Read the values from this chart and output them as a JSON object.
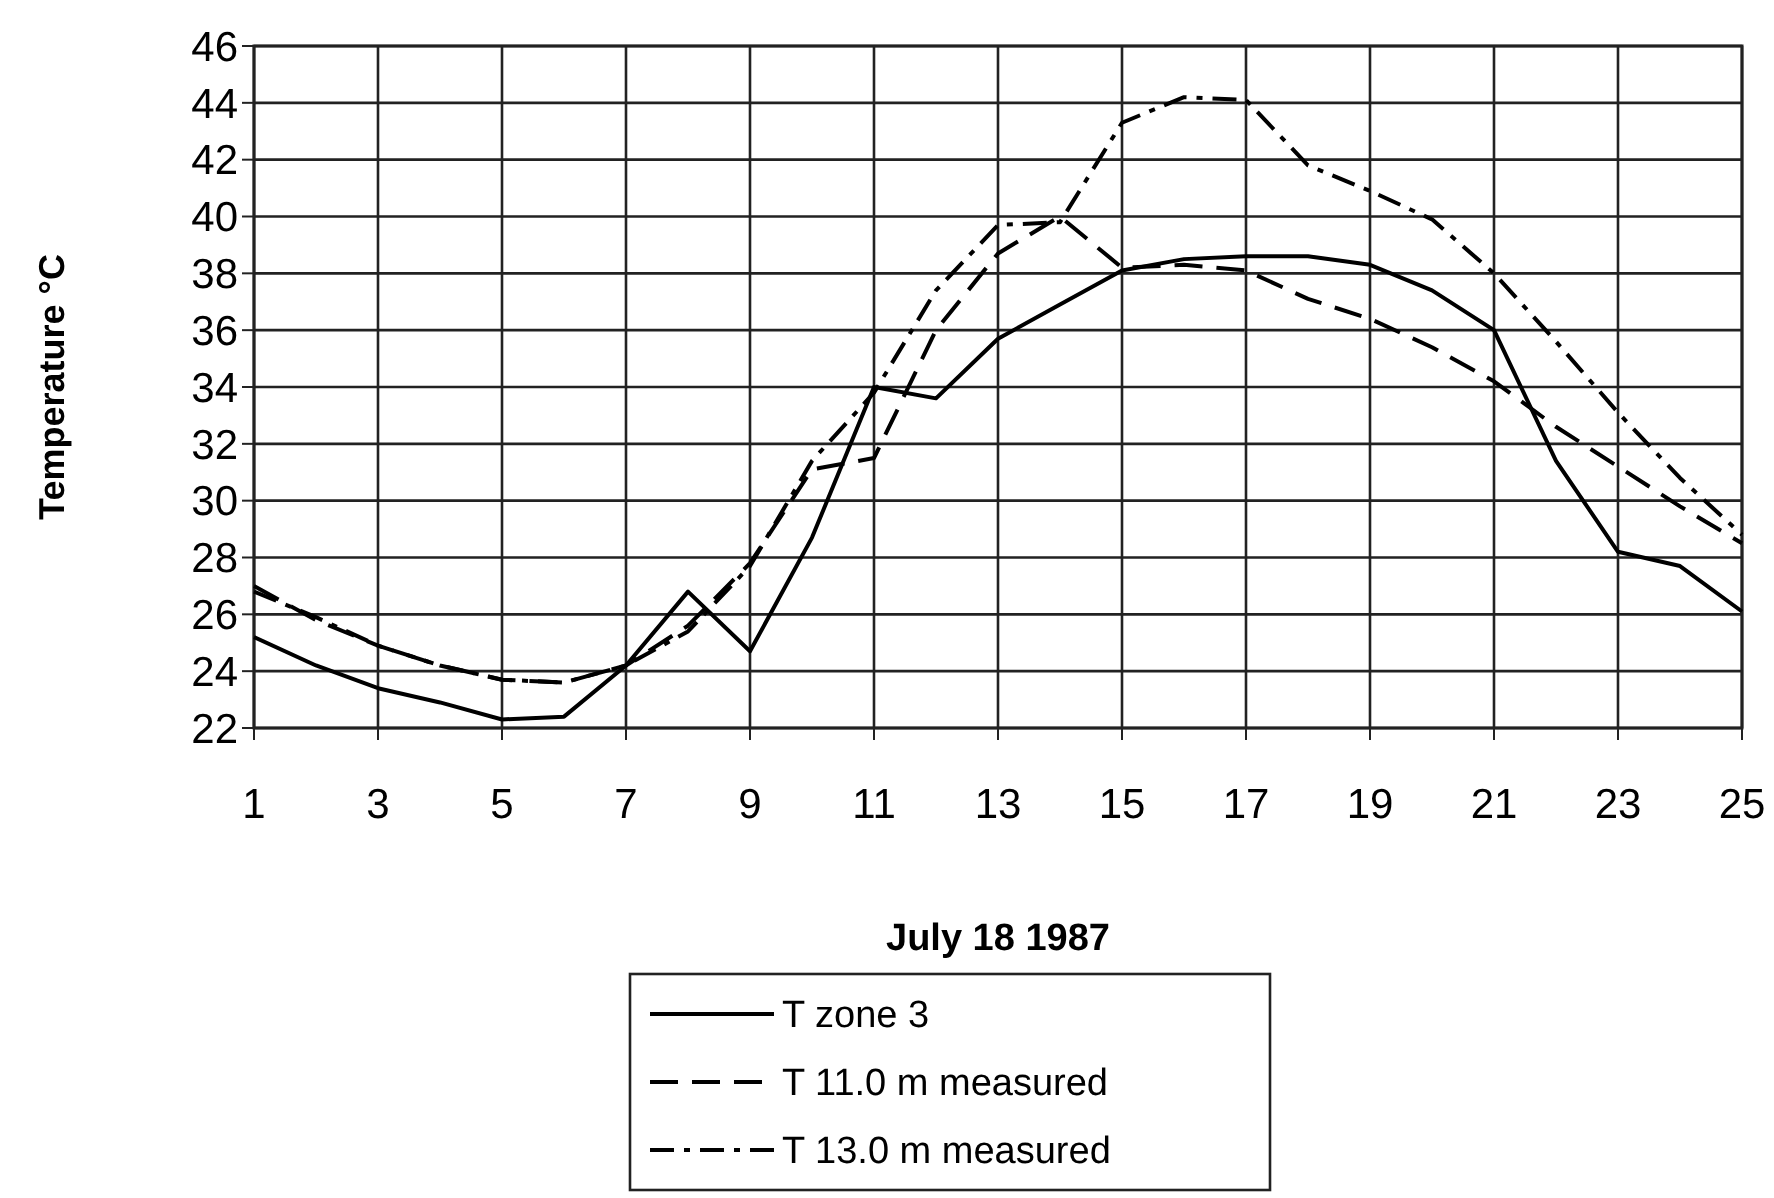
{
  "chart_data": {
    "type": "line",
    "xlabel": "July 18 1987",
    "ylabel": "Temperature  °C",
    "x": [
      1,
      2,
      3,
      4,
      5,
      6,
      7,
      8,
      9,
      10,
      11,
      12,
      13,
      14,
      15,
      16,
      17,
      18,
      19,
      20,
      21,
      22,
      23,
      24,
      25
    ],
    "series": [
      {
        "name": "T zone 3",
        "color": "#000000",
        "line_style": "solid",
        "values": [
          25.2,
          24.2,
          23.4,
          22.9,
          22.3,
          22.4,
          24.2,
          26.8,
          24.7,
          28.7,
          34.0,
          33.6,
          35.7,
          36.9,
          38.1,
          38.5,
          38.6,
          38.6,
          38.3,
          37.4,
          36.0,
          31.4,
          28.2,
          27.7,
          26.1
        ]
      },
      {
        "name": "T 11.0 m measured",
        "color": "#000000",
        "line_style": "dashed",
        "values": [
          27.0,
          25.8,
          24.9,
          24.2,
          23.7,
          23.6,
          24.2,
          25.6,
          27.8,
          31.1,
          31.5,
          36.0,
          38.7,
          40.0,
          38.2,
          38.3,
          38.1,
          37.1,
          36.4,
          35.4,
          34.2,
          32.6,
          31.2,
          29.8,
          28.5
        ]
      },
      {
        "name": "T 13.0 m measured",
        "color": "#000000",
        "line_style": "dashdot",
        "values": [
          26.8,
          25.9,
          24.9,
          24.2,
          23.7,
          23.6,
          24.2,
          25.4,
          27.7,
          31.4,
          33.8,
          37.4,
          39.7,
          39.8,
          43.3,
          44.2,
          44.1,
          41.8,
          40.9,
          39.9,
          38.0,
          35.6,
          33.1,
          30.8,
          28.8
        ]
      }
    ],
    "xlim": [
      1,
      25
    ],
    "xticks": [
      1,
      3,
      5,
      7,
      9,
      11,
      13,
      15,
      17,
      19,
      21,
      23,
      25
    ],
    "ylim": [
      22,
      46
    ],
    "yticks": [
      22,
      24,
      26,
      28,
      30,
      32,
      34,
      36,
      38,
      40,
      42,
      44,
      46
    ],
    "grid": true,
    "legend": "bottom"
  }
}
